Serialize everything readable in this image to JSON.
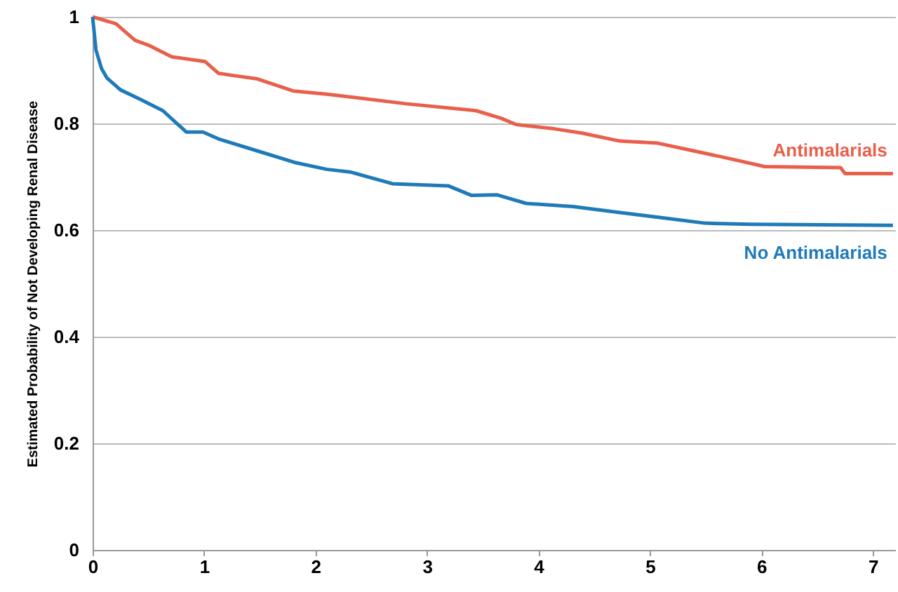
{
  "chart_data": {
    "type": "line",
    "ylabel": "Estimated Probability of  Not Developing Renal Disease",
    "xlim": [
      0,
      7.2
    ],
    "xticks": [
      0,
      1,
      2,
      3,
      4,
      5,
      6,
      7
    ],
    "ylim": [
      0,
      1
    ],
    "yticks": [
      0,
      0.2,
      0.4,
      0.6,
      0.8,
      1
    ],
    "grid": "y",
    "marker": "none",
    "line_style": "solid",
    "series": [
      {
        "name": "Antimalarials",
        "color": "#e8604c",
        "x": [
          0,
          0.21,
          0.38,
          0.5,
          0.71,
          1.01,
          1.13,
          1.26,
          1.47,
          1.8,
          2.1,
          2.81,
          3.44,
          3.66,
          3.8,
          4.14,
          4.39,
          4.73,
          5.07,
          5.36,
          5.65,
          6.03,
          6.71,
          6.75,
          7.18
        ],
        "values": [
          1,
          0.987,
          0.956,
          0.947,
          0.925,
          0.916,
          0.894,
          0.89,
          0.884,
          0.861,
          0.855,
          0.837,
          0.824,
          0.81,
          0.798,
          0.79,
          0.782,
          0.767,
          0.763,
          0.75,
          0.737,
          0.719,
          0.717,
          0.706,
          0.706
        ]
      },
      {
        "name": "No Antimalarials",
        "color": "#1f7ab8",
        "x": [
          0,
          0.03,
          0.08,
          0.13,
          0.25,
          0.42,
          0.63,
          0.84,
          0.99,
          1.13,
          1.47,
          1.81,
          2.1,
          2.31,
          2.69,
          3.19,
          3.4,
          3.63,
          3.89,
          4.31,
          4.73,
          5.15,
          5.49,
          5.9,
          7.18
        ],
        "values": [
          1,
          0.938,
          0.903,
          0.885,
          0.863,
          0.846,
          0.824,
          0.784,
          0.784,
          0.771,
          0.749,
          0.727,
          0.714,
          0.709,
          0.687,
          0.683,
          0.665,
          0.666,
          0.65,
          0.644,
          0.633,
          0.622,
          0.613,
          0.611,
          0.609
        ]
      }
    ]
  }
}
